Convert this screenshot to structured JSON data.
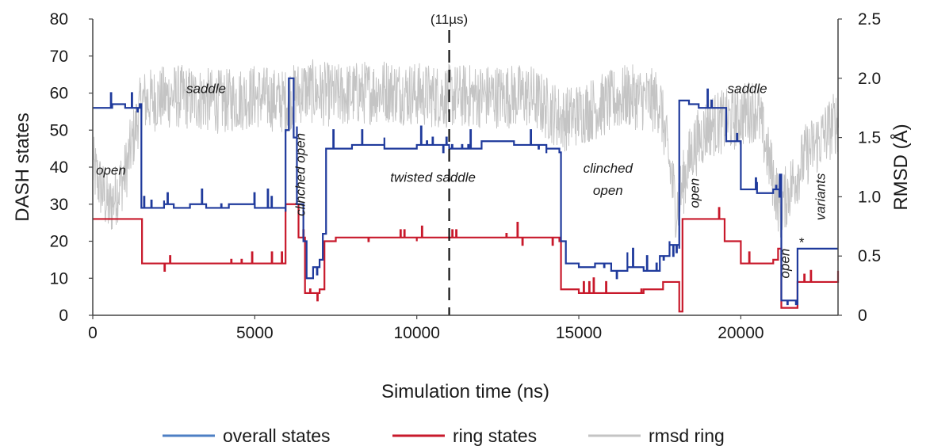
{
  "chart_data": {
    "type": "line",
    "xlabel": "Simulation time (ns)",
    "ylabel_left": "DASH states",
    "ylabel_right": "RMSD (Å)",
    "xlim": [
      0,
      23000
    ],
    "ylim_left": [
      0,
      80
    ],
    "ylim_right": [
      0,
      2.5
    ],
    "x_ticks": [
      "0",
      "5000",
      "10000",
      "15000",
      "20000"
    ],
    "y_ticks_left": [
      "0",
      "10",
      "20",
      "30",
      "40",
      "50",
      "60",
      "70",
      "80"
    ],
    "y_ticks_right": [
      "0",
      "0.5",
      "1.0",
      "1.5",
      "2.0",
      "2.5"
    ],
    "grid": false,
    "legend_position": "bottom",
    "marker_line": {
      "x": 11000,
      "label": "(11µs)"
    },
    "annotations": [
      {
        "text": "open",
        "x": 0,
        "y": 38,
        "rotated": false
      },
      {
        "text": "saddle",
        "x": 3500,
        "y": 60,
        "rotated": false
      },
      {
        "text": "clinched open",
        "x": 6550,
        "y": 38,
        "rotated": true
      },
      {
        "text": "twisted saddle",
        "x": 10500,
        "y": 36,
        "rotated": false
      },
      {
        "text": "clinched",
        "x": 15900,
        "y": 38.5,
        "rotated": false
      },
      {
        "text": "open",
        "x": 15900,
        "y": 32.5,
        "rotated": false
      },
      {
        "text": "open",
        "x": 18700,
        "y": 33,
        "rotated": true
      },
      {
        "text": "saddle",
        "x": 20200,
        "y": 60,
        "rotated": false
      },
      {
        "text": "open",
        "x": 21500,
        "y": 14,
        "rotated": true
      },
      {
        "text": "*",
        "x": 21860,
        "y": 18.5,
        "rotated": false
      },
      {
        "text": "variants",
        "x": 22600,
        "y": 32,
        "rotated": true
      }
    ],
    "series": [
      {
        "name": "overall states",
        "color": "#1f3a9c",
        "axis": "left",
        "points": [
          [
            0,
            56
          ],
          [
            600,
            57
          ],
          [
            1000,
            56
          ],
          [
            1450,
            57
          ],
          [
            1500,
            29
          ],
          [
            2200,
            30
          ],
          [
            2500,
            29
          ],
          [
            3000,
            30
          ],
          [
            3500,
            29
          ],
          [
            4200,
            30
          ],
          [
            5000,
            29
          ],
          [
            5900,
            29
          ],
          [
            5950,
            50
          ],
          [
            6050,
            64
          ],
          [
            6200,
            48
          ],
          [
            6300,
            30
          ],
          [
            6500,
            20
          ],
          [
            6600,
            10
          ],
          [
            6800,
            13
          ],
          [
            7000,
            15
          ],
          [
            7100,
            22
          ],
          [
            7200,
            45
          ],
          [
            8000,
            46
          ],
          [
            9000,
            45
          ],
          [
            10000,
            46
          ],
          [
            11000,
            45
          ],
          [
            12000,
            47
          ],
          [
            13000,
            46
          ],
          [
            14000,
            45
          ],
          [
            14400,
            44
          ],
          [
            14450,
            20
          ],
          [
            14600,
            14
          ],
          [
            15000,
            13
          ],
          [
            15500,
            14
          ],
          [
            16000,
            12
          ],
          [
            16500,
            13
          ],
          [
            17000,
            12
          ],
          [
            17500,
            16
          ],
          [
            17800,
            19
          ],
          [
            18050,
            19
          ],
          [
            18100,
            58
          ],
          [
            18400,
            57
          ],
          [
            18700,
            56
          ],
          [
            19000,
            56
          ],
          [
            19300,
            56
          ],
          [
            19550,
            47
          ],
          [
            20000,
            34
          ],
          [
            20500,
            33
          ],
          [
            21000,
            34
          ],
          [
            21200,
            38
          ],
          [
            21250,
            4
          ],
          [
            21700,
            3
          ],
          [
            21750,
            18
          ],
          [
            22200,
            18
          ],
          [
            22700,
            18
          ],
          [
            23000,
            18
          ]
        ]
      },
      {
        "name": "ring states",
        "color": "#c8192b",
        "axis": "left",
        "points": [
          [
            0,
            26
          ],
          [
            1500,
            26
          ],
          [
            1520,
            14
          ],
          [
            2500,
            14
          ],
          [
            3500,
            14
          ],
          [
            4500,
            14
          ],
          [
            5900,
            14
          ],
          [
            5950,
            30
          ],
          [
            6100,
            30
          ],
          [
            6350,
            21
          ],
          [
            6550,
            6
          ],
          [
            7000,
            7
          ],
          [
            7150,
            20
          ],
          [
            7500,
            21
          ],
          [
            9000,
            21
          ],
          [
            10000,
            21
          ],
          [
            11000,
            21
          ],
          [
            12000,
            21
          ],
          [
            13000,
            21
          ],
          [
            14000,
            21
          ],
          [
            14400,
            20
          ],
          [
            14450,
            7
          ],
          [
            15000,
            6
          ],
          [
            16000,
            6
          ],
          [
            17000,
            7
          ],
          [
            17600,
            9
          ],
          [
            18050,
            9
          ],
          [
            18100,
            1
          ],
          [
            18200,
            26
          ],
          [
            19000,
            26
          ],
          [
            19500,
            20
          ],
          [
            20000,
            14
          ],
          [
            21000,
            15
          ],
          [
            21150,
            18
          ],
          [
            21250,
            2
          ],
          [
            21700,
            2
          ],
          [
            21750,
            9
          ],
          [
            23000,
            9
          ]
        ]
      },
      {
        "name": "rmsd ring",
        "color": "#c4c4c4",
        "axis": "right",
        "points": [
          [
            0,
            1.25
          ],
          [
            500,
            0.9
          ],
          [
            1000,
            1.2
          ],
          [
            1500,
            1.8
          ],
          [
            2500,
            1.85
          ],
          [
            4000,
            1.8
          ],
          [
            5000,
            1.85
          ],
          [
            5900,
            1.8
          ],
          [
            6500,
            1.9
          ],
          [
            7500,
            1.85
          ],
          [
            9000,
            1.9
          ],
          [
            10500,
            1.85
          ],
          [
            12000,
            1.85
          ],
          [
            13500,
            1.85
          ],
          [
            14500,
            1.65
          ],
          [
            15500,
            1.75
          ],
          [
            16500,
            1.85
          ],
          [
            17500,
            1.8
          ],
          [
            18000,
            0.9
          ],
          [
            18500,
            1.4
          ],
          [
            19000,
            1.6
          ],
          [
            19700,
            1.65
          ],
          [
            20500,
            1.75
          ],
          [
            21200,
            0.9
          ],
          [
            22000,
            1.35
          ],
          [
            23000,
            1.65
          ]
        ]
      }
    ]
  }
}
